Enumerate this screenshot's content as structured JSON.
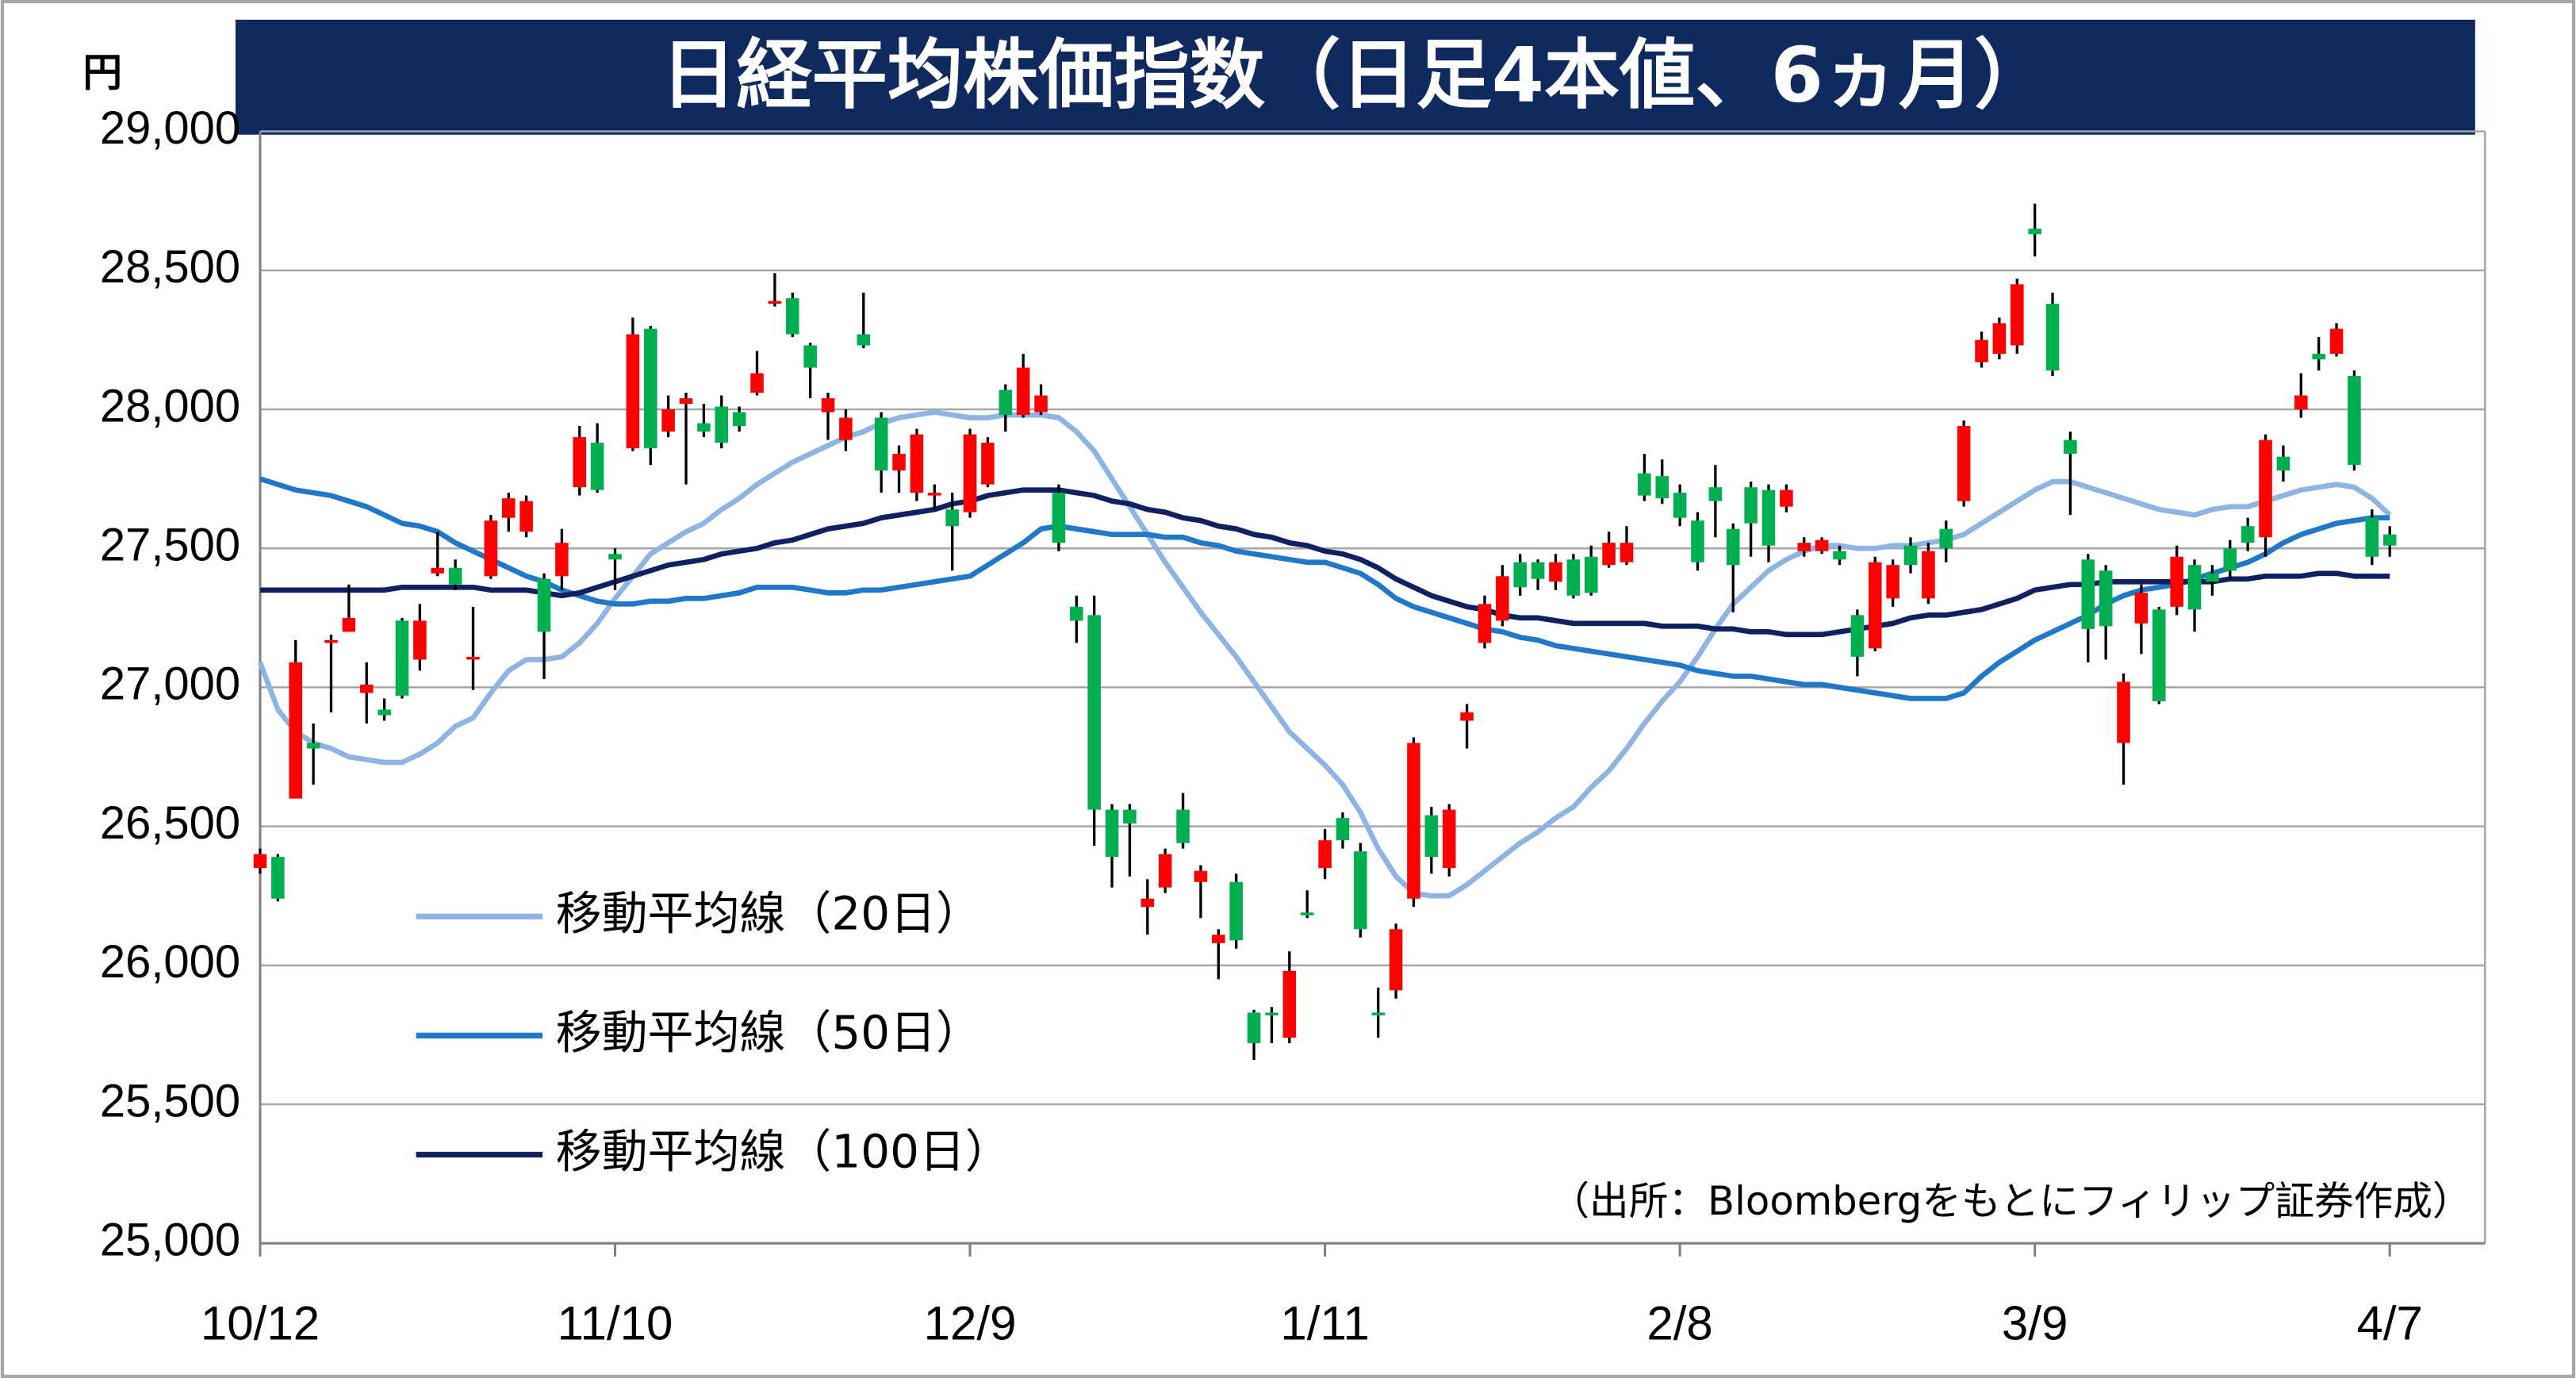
{
  "chart_data": {
    "type": "candlestick",
    "title": "日経平均株価指数（日足4本値、6ヵ月）",
    "y_unit": "円",
    "source": "（出所：Bloombergをもとにフィリップ証券作成）",
    "up_color": "#ff0000",
    "down_color": "#00b050",
    "wick_color": "#000000",
    "grid": true,
    "legend": "lower-left",
    "ylim": [
      25000,
      29000
    ],
    "yticks": [
      {
        "value": 25000,
        "label": "25,000"
      },
      {
        "value": 25500,
        "label": "25,500"
      },
      {
        "value": 26000,
        "label": "26,000"
      },
      {
        "value": 26500,
        "label": "26,500"
      },
      {
        "value": 27000,
        "label": "27,000"
      },
      {
        "value": 27500,
        "label": "27,500"
      },
      {
        "value": 28000,
        "label": "28,000"
      },
      {
        "value": 28500,
        "label": "28,500"
      },
      {
        "value": 29000,
        "label": "29,000"
      }
    ],
    "categories": [
      "10/12",
      null,
      null,
      null,
      null,
      null,
      null,
      null,
      null,
      null,
      null,
      null,
      null,
      null,
      null,
      null,
      null,
      null,
      null,
      null,
      "11/10",
      null,
      null,
      null,
      null,
      null,
      null,
      null,
      null,
      null,
      null,
      null,
      null,
      null,
      null,
      null,
      null,
      null,
      null,
      null,
      "12/9",
      null,
      null,
      null,
      null,
      null,
      null,
      null,
      null,
      null,
      null,
      null,
      null,
      null,
      null,
      null,
      null,
      null,
      null,
      null,
      "1/11",
      null,
      null,
      null,
      null,
      null,
      null,
      null,
      null,
      null,
      null,
      null,
      null,
      null,
      null,
      null,
      null,
      null,
      null,
      null,
      "2/8",
      null,
      null,
      null,
      null,
      null,
      null,
      null,
      null,
      null,
      null,
      null,
      null,
      null,
      null,
      null,
      null,
      null,
      null,
      null,
      "3/9",
      null,
      null,
      null,
      null,
      null,
      null,
      null,
      null,
      null,
      null,
      null,
      null,
      null,
      null,
      null,
      null,
      null,
      null,
      null,
      "4/7"
    ],
    "open": [
      26350,
      26390,
      26600,
      26800,
      27160,
      27200,
      26980,
      26920,
      27240,
      27100,
      27410,
      27430,
      27100,
      27400,
      27610,
      27560,
      27390,
      27400,
      27720,
      27880,
      27480,
      27860,
      28290,
      27920,
      28020,
      27950,
      28010,
      27990,
      28060,
      28380,
      28400,
      28230,
      27990,
      27890,
      28270,
      27970,
      27780,
      27700,
      27690,
      27640,
      27630,
      27730,
      28070,
      27980,
      27990,
      27700,
      27290,
      27260,
      26560,
      26560,
      26210,
      26280,
      26560,
      26300,
      26080,
      26300,
      25830,
      25830,
      25740,
      26190,
      26350,
      26530,
      26410,
      25830,
      25910,
      26240,
      26540,
      26350,
      26880,
      27160,
      27240,
      27450,
      27450,
      27380,
      27460,
      27470,
      27440,
      27450,
      27770,
      27760,
      27700,
      27600,
      27720,
      27570,
      27720,
      27710,
      27650,
      27490,
      27490,
      27490,
      27260,
      27140,
      27320,
      27510,
      27320,
      27570,
      27670,
      28170,
      28200,
      28230,
      28650,
      28380,
      27890,
      27460,
      27420,
      26800,
      27230,
      27280,
      27290,
      27440,
      27410,
      27500,
      27580,
      27540,
      27830,
      28000,
      28200,
      28200,
      28120,
      27610,
      27550
    ],
    "high": [
      26420,
      26400,
      27170,
      26870,
      27190,
      27370,
      27090,
      26960,
      27250,
      27300,
      27560,
      27460,
      27290,
      27620,
      27700,
      27690,
      27410,
      27570,
      27940,
      27950,
      27500,
      28330,
      28300,
      28050,
      28060,
      28020,
      28050,
      28010,
      28210,
      28490,
      28420,
      28240,
      28060,
      28000,
      28420,
      27990,
      27870,
      27930,
      27730,
      27700,
      27930,
      27900,
      28090,
      28200,
      28090,
      27730,
      27330,
      27330,
      26580,
      26580,
      26310,
      26420,
      26620,
      26360,
      26130,
      26330,
      25840,
      25850,
      26050,
      26270,
      26490,
      26550,
      26440,
      25920,
      26150,
      26820,
      26570,
      26580,
      26940,
      27330,
      27440,
      27480,
      27460,
      27480,
      27480,
      27510,
      27560,
      27580,
      27840,
      27820,
      27730,
      27630,
      27800,
      27590,
      27740,
      27730,
      27730,
      27540,
      27540,
      27510,
      27280,
      27470,
      27460,
      27540,
      27520,
      27600,
      27960,
      28280,
      28330,
      28470,
      28740,
      28420,
      27920,
      27480,
      27440,
      27050,
      27370,
      27290,
      27510,
      27460,
      27440,
      27530,
      27610,
      27910,
      27870,
      28130,
      28260,
      28310,
      28140,
      27640,
      27580
    ],
    "low": [
      26330,
      26230,
      26600,
      26650,
      26910,
      27200,
      26870,
      26880,
      26960,
      27060,
      27400,
      27350,
      26990,
      27390,
      27560,
      27540,
      27030,
      27350,
      27690,
      27700,
      27350,
      27850,
      27800,
      27900,
      27730,
      27900,
      27860,
      27920,
      28050,
      28370,
      28260,
      28040,
      27890,
      27850,
      28220,
      27700,
      27700,
      27670,
      27640,
      27420,
      27610,
      27720,
      27920,
      27970,
      27980,
      27490,
      27160,
      26430,
      26280,
      26320,
      26110,
      26260,
      26420,
      26170,
      25950,
      26060,
      25660,
      25720,
      25720,
      26170,
      26310,
      26420,
      26100,
      25740,
      25880,
      26210,
      26330,
      26320,
      26780,
      27140,
      27220,
      27330,
      27350,
      27350,
      27320,
      27330,
      27430,
      27440,
      27670,
      27660,
      27580,
      27420,
      27540,
      27270,
      27470,
      27450,
      27630,
      27470,
      27480,
      27440,
      27040,
      27130,
      27290,
      27410,
      27300,
      27450,
      27650,
      28150,
      28180,
      28200,
      28550,
      28120,
      27620,
      27090,
      27100,
      26650,
      27120,
      26940,
      27260,
      27200,
      27330,
      27390,
      27490,
      27470,
      27740,
      27970,
      28140,
      28190,
      27780,
      27440,
      27470
    ],
    "close": [
      26400,
      26240,
      27090,
      26780,
      27170,
      27250,
      27010,
      26900,
      26970,
      27240,
      27430,
      27370,
      27110,
      27600,
      27680,
      27670,
      27200,
      27520,
      27900,
      27710,
      27460,
      28270,
      27860,
      28000,
      28040,
      27920,
      27880,
      27940,
      28130,
      28390,
      28270,
      28150,
      28040,
      27970,
      28230,
      27780,
      27840,
      27910,
      27700,
      27580,
      27910,
      27880,
      27980,
      28150,
      28050,
      27520,
      27240,
      26560,
      26390,
      26510,
      26240,
      26400,
      26440,
      26340,
      26110,
      26090,
      25720,
      25820,
      25980,
      26180,
      26450,
      26450,
      26130,
      25820,
      26130,
      26800,
      26390,
      26560,
      26910,
      27300,
      27400,
      27360,
      27390,
      27450,
      27330,
      27340,
      27520,
      27520,
      27690,
      27680,
      27610,
      27450,
      27670,
      27440,
      27590,
      27510,
      27710,
      27520,
      27530,
      27460,
      27110,
      27450,
      27440,
      27440,
      27490,
      27500,
      27940,
      28250,
      28310,
      28450,
      28630,
      28140,
      27840,
      27210,
      27220,
      27020,
      27340,
      26950,
      27470,
      27280,
      27380,
      27420,
      27520,
      27890,
      27780,
      28050,
      28180,
      28290,
      27800,
      27470,
      27510
    ],
    "series": [
      {
        "name": "移動平均線（20日）",
        "color": "#8db4e2",
        "values": [
          27090,
          26920,
          26840,
          26800,
          26780,
          26750,
          26740,
          26730,
          26730,
          26760,
          26800,
          26860,
          26890,
          26980,
          27060,
          27100,
          27100,
          27110,
          27160,
          27230,
          27320,
          27400,
          27480,
          27520,
          27560,
          27590,
          27640,
          27680,
          27730,
          27770,
          27810,
          27840,
          27870,
          27900,
          27920,
          27950,
          27970,
          27980,
          27990,
          27980,
          27970,
          27970,
          27980,
          27980,
          27980,
          27970,
          27920,
          27850,
          27750,
          27650,
          27550,
          27450,
          27360,
          27270,
          27190,
          27110,
          27020,
          26930,
          26840,
          26780,
          26720,
          26650,
          26550,
          26420,
          26320,
          26260,
          26250,
          26250,
          26290,
          26340,
          26390,
          26440,
          26480,
          26530,
          26570,
          26640,
          26700,
          26780,
          26870,
          26950,
          27020,
          27110,
          27210,
          27300,
          27360,
          27420,
          27460,
          27490,
          27510,
          27510,
          27500,
          27500,
          27510,
          27510,
          27520,
          27530,
          27550,
          27590,
          27630,
          27670,
          27710,
          27740,
          27740,
          27720,
          27700,
          27680,
          27660,
          27640,
          27630,
          27620,
          27640,
          27650,
          27650,
          27670,
          27690,
          27710,
          27720,
          27730,
          27720,
          27680,
          27620
        ]
      },
      {
        "name": "移動平均線（50日）",
        "color": "#1f78c8",
        "values": [
          27750,
          27730,
          27710,
          27700,
          27690,
          27670,
          27650,
          27620,
          27590,
          27580,
          27560,
          27520,
          27490,
          27460,
          27430,
          27400,
          27380,
          27350,
          27330,
          27310,
          27300,
          27300,
          27310,
          27310,
          27320,
          27320,
          27330,
          27340,
          27360,
          27360,
          27360,
          27350,
          27340,
          27340,
          27350,
          27350,
          27360,
          27370,
          27380,
          27390,
          27400,
          27440,
          27480,
          27520,
          27570,
          27580,
          27570,
          27560,
          27550,
          27550,
          27550,
          27540,
          27540,
          27520,
          27510,
          27490,
          27480,
          27470,
          27460,
          27450,
          27450,
          27430,
          27410,
          27370,
          27320,
          27290,
          27270,
          27250,
          27230,
          27210,
          27200,
          27180,
          27170,
          27150,
          27140,
          27130,
          27120,
          27110,
          27100,
          27090,
          27080,
          27060,
          27050,
          27040,
          27040,
          27030,
          27020,
          27010,
          27010,
          27000,
          26990,
          26980,
          26970,
          26960,
          26960,
          26960,
          26980,
          27040,
          27090,
          27130,
          27170,
          27200,
          27230,
          27260,
          27300,
          27330,
          27350,
          27360,
          27370,
          27390,
          27410,
          27430,
          27450,
          27480,
          27520,
          27550,
          27570,
          27590,
          27600,
          27610,
          27610
        ]
      },
      {
        "name": "移動平均線（100日）",
        "color": "#0f2160",
        "values": [
          27350,
          27350,
          27350,
          27350,
          27350,
          27350,
          27350,
          27350,
          27360,
          27360,
          27360,
          27360,
          27360,
          27350,
          27350,
          27350,
          27340,
          27330,
          27340,
          27360,
          27380,
          27400,
          27420,
          27440,
          27450,
          27460,
          27480,
          27490,
          27500,
          27520,
          27530,
          27550,
          27570,
          27580,
          27590,
          27610,
          27620,
          27630,
          27640,
          27660,
          27670,
          27690,
          27700,
          27710,
          27710,
          27710,
          27700,
          27690,
          27670,
          27660,
          27640,
          27630,
          27610,
          27600,
          27580,
          27570,
          27550,
          27540,
          27520,
          27510,
          27490,
          27480,
          27460,
          27430,
          27390,
          27360,
          27330,
          27310,
          27290,
          27280,
          27260,
          27250,
          27250,
          27240,
          27230,
          27230,
          27230,
          27230,
          27230,
          27220,
          27220,
          27220,
          27210,
          27210,
          27200,
          27200,
          27190,
          27190,
          27190,
          27200,
          27210,
          27220,
          27230,
          27250,
          27260,
          27260,
          27270,
          27280,
          27300,
          27320,
          27350,
          27360,
          27370,
          27370,
          27380,
          27380,
          27380,
          27380,
          27380,
          27380,
          27380,
          27390,
          27390,
          27400,
          27400,
          27400,
          27410,
          27410,
          27400,
          27400,
          27400
        ]
      }
    ]
  }
}
